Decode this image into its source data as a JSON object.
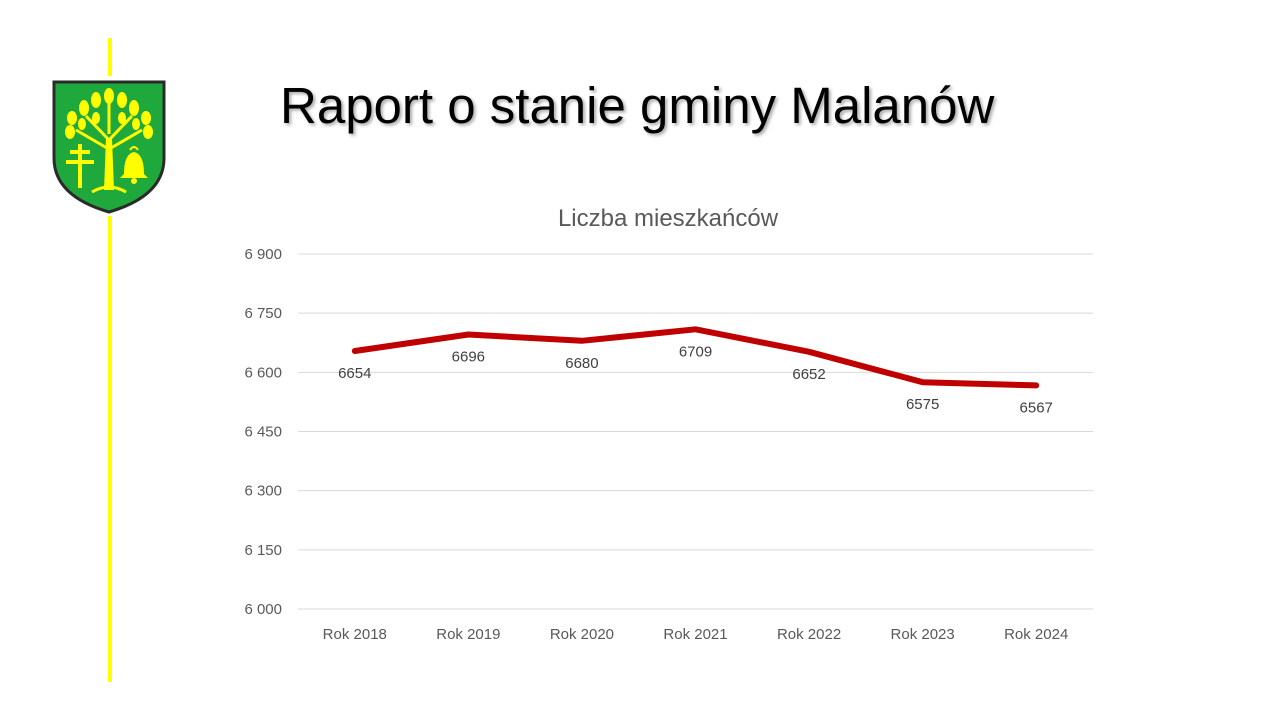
{
  "slide": {
    "title": "Raport o stanie gminy Malanów",
    "accent_color": "#ffff00"
  },
  "logo": {
    "icon": "coat-of-arms-icon",
    "shield_color": "#1fa83c",
    "charge_color": "#ffff00"
  },
  "chart_data": {
    "type": "line",
    "title": "Liczba mieszkańców",
    "xlabel": "",
    "ylabel": "",
    "categories": [
      "Rok 2018",
      "Rok 2019",
      "Rok 2020",
      "Rok 2021",
      "Rok 2022",
      "Rok 2023",
      "Rok 2024"
    ],
    "series": [
      {
        "values": [
          6654,
          6696,
          6680,
          6709,
          6652,
          6575,
          6567
        ],
        "color": "#c00000"
      }
    ],
    "data_labels": [
      "6654",
      "6696",
      "6680",
      "6709",
      "6652",
      "6575",
      "6567"
    ],
    "ylim": [
      6000,
      6900
    ],
    "yticks": [
      6000,
      6150,
      6300,
      6450,
      6600,
      6750,
      6900
    ],
    "ytick_labels": [
      "6 000",
      "6 150",
      "6 300",
      "6 450",
      "6 600",
      "6 750",
      "6 900"
    ],
    "grid": true,
    "legend": "none"
  }
}
